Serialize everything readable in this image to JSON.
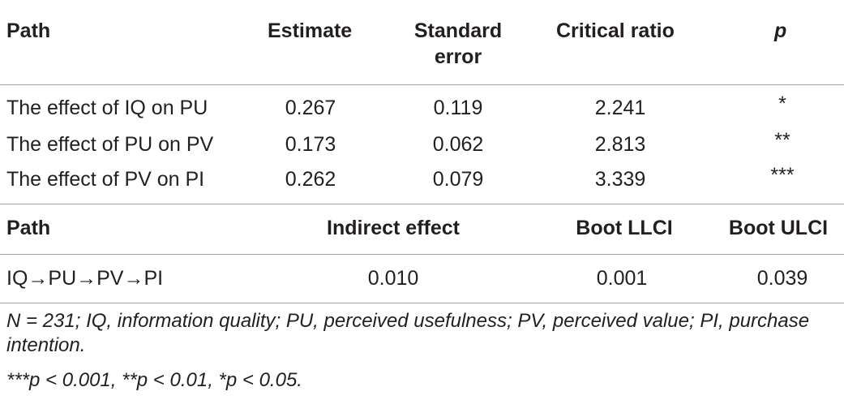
{
  "table1": {
    "headers": {
      "path": "Path",
      "estimate": "Estimate",
      "se_line1": "Standard",
      "se_line2": "error",
      "critical": "Critical ratio",
      "p": "p"
    },
    "rows": [
      {
        "path": "The effect of IQ on PU",
        "estimate": "0.267",
        "se": "0.119",
        "cr": "2.241",
        "p": "*"
      },
      {
        "path": "The effect of PU on PV",
        "estimate": "0.173",
        "se": "0.062",
        "cr": "2.813",
        "p": "**"
      },
      {
        "path": "The effect of PV on PI",
        "estimate": "0.262",
        "se": "0.079",
        "cr": "3.339",
        "p": "***"
      }
    ]
  },
  "table2": {
    "headers": {
      "path": "Path",
      "indirect": "Indirect effect",
      "llci": "Boot LLCI",
      "ulci": "Boot ULCI"
    },
    "rows": [
      {
        "path": "IQ→PU→PV→PI",
        "indirect": "0.010",
        "llci": "0.001",
        "ulci": "0.039"
      }
    ]
  },
  "notes": {
    "abbreviations": "N = 231; IQ, information quality; PU, perceived usefulness; PV, perceived value; PI, purchase intention.",
    "significance": "***p < 0.001, **p < 0.01, *p < 0.05."
  }
}
